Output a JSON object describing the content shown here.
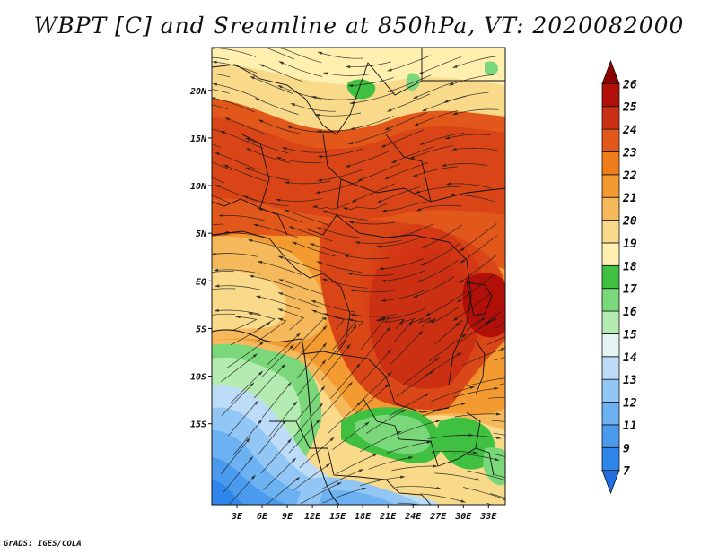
{
  "title": "WBPT [C] and Sreamline at 850hPa, VT: 2020082000",
  "credit": "GrADS: IGES/COLA",
  "map": {
    "lat_range": [
      -23.5,
      24.5
    ],
    "lon_range": [
      0,
      35
    ],
    "lat_ticks": [
      {
        "value": 20,
        "label": "20N"
      },
      {
        "value": 15,
        "label": "15N"
      },
      {
        "value": 10,
        "label": "10N"
      },
      {
        "value": 5,
        "label": "5N"
      },
      {
        "value": 0,
        "label": "EQ"
      },
      {
        "value": -5,
        "label": "5S"
      },
      {
        "value": -10,
        "label": "10S"
      },
      {
        "value": -15,
        "label": "15S"
      }
    ],
    "lon_ticks": [
      {
        "value": 3,
        "label": "3E"
      },
      {
        "value": 6,
        "label": "6E"
      },
      {
        "value": 9,
        "label": "9E"
      },
      {
        "value": 12,
        "label": "12E"
      },
      {
        "value": 15,
        "label": "15E"
      },
      {
        "value": 18,
        "label": "18E"
      },
      {
        "value": 21,
        "label": "21E"
      },
      {
        "value": 24,
        "label": "24E"
      },
      {
        "value": 27,
        "label": "27E"
      },
      {
        "value": 30,
        "label": "30E"
      },
      {
        "value": 33,
        "label": "33E"
      }
    ]
  },
  "colorbar": {
    "levels": [
      "7",
      "9",
      "11",
      "12",
      "13",
      "14",
      "15",
      "16",
      "17",
      "18",
      "19",
      "20",
      "21",
      "22",
      "23",
      "24",
      "25",
      "26"
    ],
    "colors": [
      "#1e6ee0",
      "#2f86ea",
      "#4a9bee",
      "#6cb1f2",
      "#92c6f5",
      "#bcdcf8",
      "#e4f4f2",
      "#b4ebb0",
      "#7ad87a",
      "#40c040",
      "#fff0b0",
      "#f9d98a",
      "#f5b85a",
      "#f39a30",
      "#ee7d1a",
      "#e2571a",
      "#cc3012",
      "#b01008",
      "#8c0000"
    ]
  },
  "fields": {
    "temperature_map": "wet-bulb potential temperature",
    "streamlines": "850hPa wind streamlines"
  }
}
